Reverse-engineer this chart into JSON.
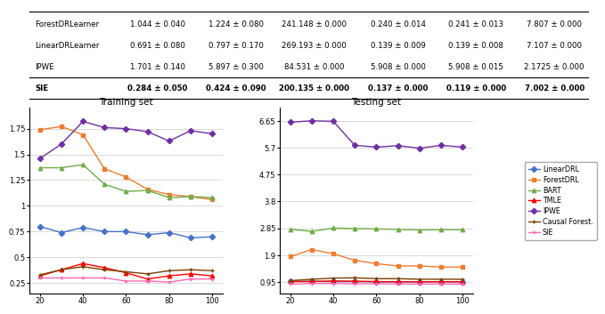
{
  "x": [
    20,
    30,
    40,
    50,
    60,
    70,
    80,
    90,
    100
  ],
  "table": {
    "rows": [
      [
        "ForestDRLearner",
        "1.044 ± 0.040",
        "1.224 ± 0.080",
        "241.148 ± 0.000",
        "0.240 ± 0.014",
        "0.241 ± 0.013",
        "7.807 ± 0.000"
      ],
      [
        "LinearDRLearner",
        "0.691 ± 0.080",
        "0.797 ± 0.170",
        "269.193 ± 0.000",
        "0.139 ± 0.009",
        "0.139 ± 0.008",
        "7.107 ± 0.000"
      ],
      [
        "IPWE",
        "1.701 ± 0.140",
        "5.897 ± 0.300",
        "84.531 ± 0.000",
        "5.908 ± 0.000",
        "5.908 ± 0.015",
        "2.1725 ± 0.000"
      ],
      [
        "SIE",
        "0.284 ± 0.050",
        "0.424 ± 0.090",
        "200.135 ± 0.000",
        "0.137 ± 0.000",
        "0.119 ± 0.000",
        "7.002 ± 0.000"
      ]
    ]
  },
  "train": {
    "LinearDRL": [
      0.8,
      0.74,
      0.79,
      0.75,
      0.75,
      0.72,
      0.74,
      0.69,
      0.7
    ],
    "ForestDRL": [
      1.74,
      1.77,
      1.69,
      1.36,
      1.28,
      1.16,
      1.11,
      1.09,
      1.06
    ],
    "BART": [
      1.37,
      1.37,
      1.4,
      1.21,
      1.14,
      1.15,
      1.08,
      1.09,
      1.08
    ],
    "TMLE": [
      0.32,
      0.38,
      0.44,
      0.4,
      0.35,
      0.29,
      0.32,
      0.34,
      0.32
    ],
    "IPWE": [
      1.46,
      1.6,
      1.82,
      1.76,
      1.75,
      1.72,
      1.63,
      1.73,
      1.7
    ],
    "CausalForest": [
      0.33,
      0.38,
      0.41,
      0.38,
      0.36,
      0.34,
      0.37,
      0.38,
      0.37
    ],
    "SIE": [
      0.3,
      0.3,
      0.3,
      0.3,
      0.27,
      0.27,
      0.26,
      0.29,
      0.29
    ]
  },
  "test": {
    "LinearDRL": [
      0.97,
      0.98,
      0.97,
      0.97,
      0.96,
      0.95,
      0.96,
      0.96,
      0.96
    ],
    "ForestDRL": [
      1.85,
      2.1,
      1.95,
      1.72,
      1.6,
      1.52,
      1.52,
      1.48,
      1.48
    ],
    "BART": [
      2.82,
      2.74,
      2.86,
      2.84,
      2.83,
      2.81,
      2.79,
      2.8,
      2.8
    ],
    "TMLE": [
      0.97,
      0.97,
      0.99,
      0.98,
      0.97,
      0.96,
      0.96,
      0.96,
      0.96
    ],
    "IPWE": [
      6.6,
      6.65,
      6.63,
      5.78,
      5.72,
      5.77,
      5.68,
      5.78,
      5.72
    ],
    "CausalForest": [
      1.0,
      1.05,
      1.09,
      1.1,
      1.07,
      1.07,
      1.05,
      1.05,
      1.05
    ],
    "SIE": [
      0.88,
      0.9,
      0.9,
      0.89,
      0.89,
      0.88,
      0.88,
      0.88,
      0.88
    ]
  },
  "colors": {
    "LinearDRL": "#4472C4",
    "ForestDRL": "#ED7D31",
    "BART": "#70AD47",
    "TMLE": "#FF0000",
    "IPWE": "#7030A0",
    "CausalForest": "#7B3F00",
    "SIE": "#FF69B4"
  },
  "markers": {
    "LinearDRL": "D",
    "ForestDRL": "s",
    "BART": "^",
    "TMLE": "^",
    "IPWE": "D",
    "CausalForest": "+",
    "SIE": "+"
  },
  "train_yticks": [
    0.25,
    0.5,
    0.75,
    1.0,
    1.25,
    1.5,
    1.75
  ],
  "test_yticks": [
    0.95,
    1.9,
    2.85,
    3.8,
    4.75,
    5.7,
    6.65
  ],
  "legend_labels": [
    "LinearDRL",
    "ForestDRL",
    "BART",
    "TMLE",
    "IPWE",
    "Causal Forest.",
    "SIE"
  ],
  "legend_keys": [
    "LinearDRL",
    "ForestDRL",
    "BART",
    "TMLE",
    "IPWE",
    "CausalForest",
    "SIE"
  ]
}
